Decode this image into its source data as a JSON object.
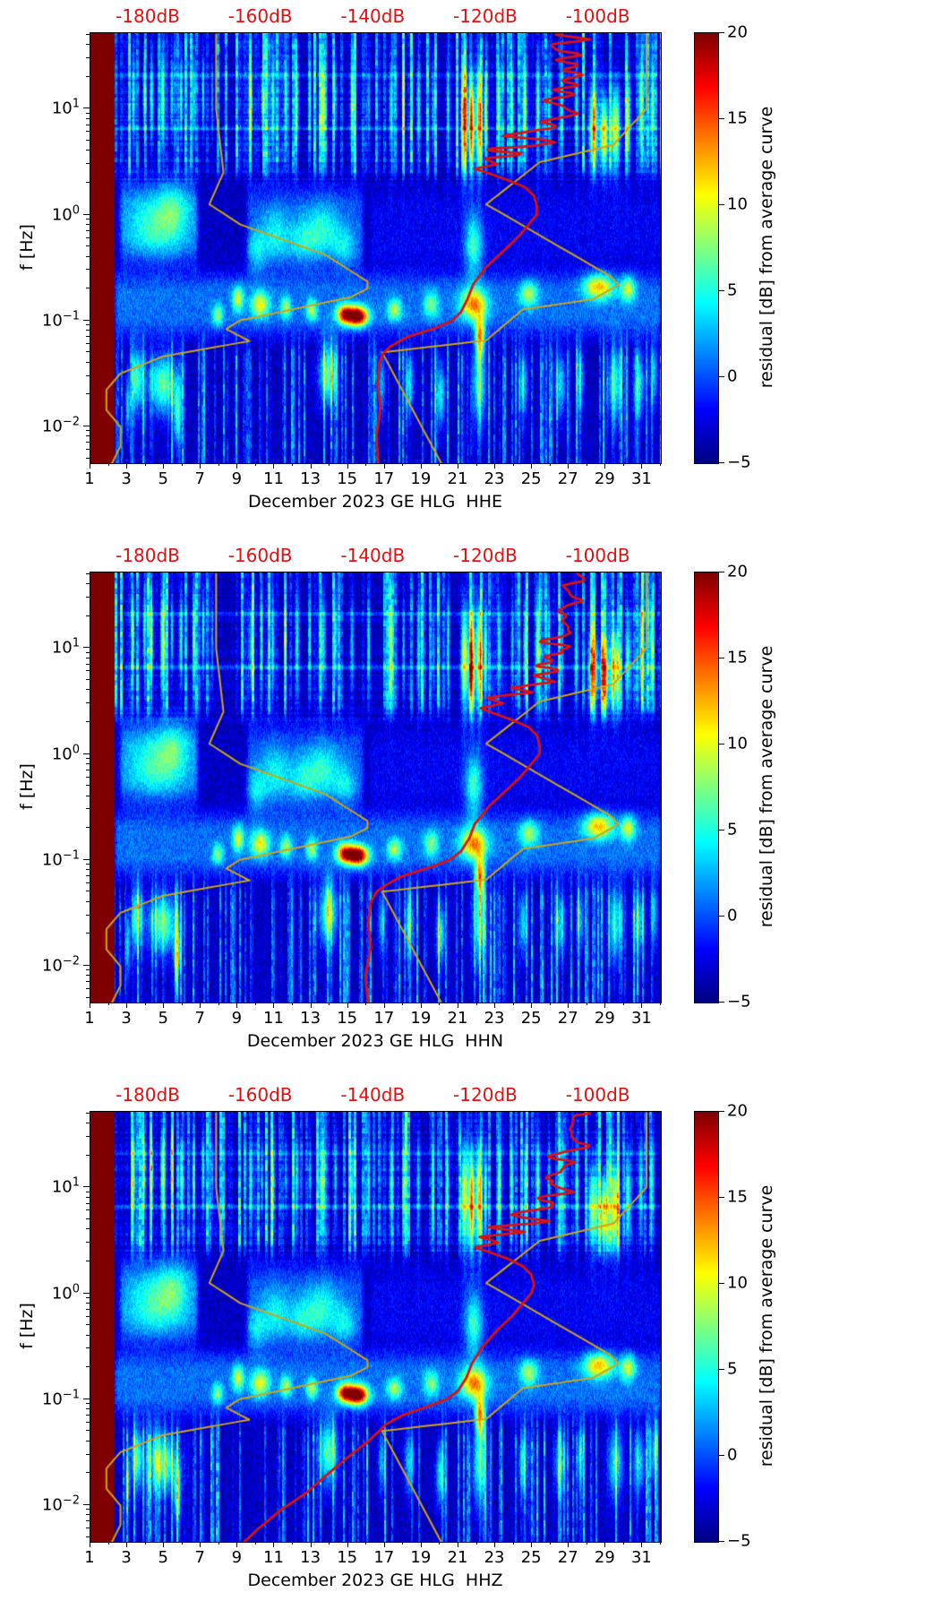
{
  "figure": {
    "station": "GE HLG",
    "month_label": "December 2023",
    "channels": [
      "HHE",
      "HHN",
      "HHZ"
    ]
  },
  "db_axis": {
    "color": "#e01010",
    "ticks": [
      {
        "label": "-180dB",
        "db": -180
      },
      {
        "label": "-160dB",
        "db": -160
      },
      {
        "label": "-140dB",
        "db": -140
      },
      {
        "label": "-120dB",
        "db": -120
      },
      {
        "label": "-100dB",
        "db": -100
      }
    ],
    "db_at_plot_edges": [
      -190.34,
      -88.96
    ]
  },
  "colors": {
    "mean_curve": "#dd1111",
    "noise_model": "#cfa415",
    "axis": "#000000"
  },
  "noise_models": {
    "nlnm_f_db": [
      [
        50,
        -168
      ],
      [
        10,
        -168
      ],
      [
        2.5,
        -166.7
      ],
      [
        1.25,
        -169.2
      ],
      [
        0.806,
        -163.7
      ],
      [
        0.417,
        -148.6
      ],
      [
        0.233,
        -141.1
      ],
      [
        0.2,
        -141.1
      ],
      [
        0.167,
        -144.0
      ],
      [
        0.1,
        -163.8
      ],
      [
        0.083,
        -166.2
      ],
      [
        0.064,
        -162.1
      ],
      [
        0.0457,
        -177.5
      ],
      [
        0.0316,
        -185.0
      ],
      [
        0.0222,
        -187.5
      ],
      [
        0.0143,
        -187.5
      ],
      [
        0.0099,
        -185.0
      ],
      [
        0.0065,
        -185.0
      ],
      [
        0.0045,
        -186.5
      ]
    ],
    "nhnm_f_db": [
      [
        50,
        -91.5
      ],
      [
        10,
        -91.5
      ],
      [
        4.55,
        -97.4
      ],
      [
        3.125,
        -110.5
      ],
      [
        1.25,
        -120.0
      ],
      [
        0.263,
        -98.0
      ],
      [
        0.217,
        -96.5
      ],
      [
        0.159,
        -101.0
      ],
      [
        0.127,
        -113.5
      ],
      [
        0.065,
        -120.0
      ],
      [
        0.05,
        -138.5
      ],
      [
        0.0045,
        -128.0
      ]
    ]
  },
  "chart_data": [
    {
      "type": "heatmap",
      "channel": "HHE",
      "xlabel": "December 2023 GE HLG  HHE",
      "ylabel": "f [Hz]",
      "x_range_days": [
        1,
        32
      ],
      "x_tick_labels": [
        "1",
        "3",
        "5",
        "7",
        "9",
        "11",
        "13",
        "15",
        "17",
        "19",
        "21",
        "23",
        "25",
        "27",
        "29",
        "31"
      ],
      "y_freq_range_hz": [
        0.0045,
        51.6
      ],
      "y_tick_exponents": [
        1,
        0,
        -1,
        -2
      ],
      "saturated_band_days": [
        1,
        2.28
      ],
      "colorbar": {
        "label": "residual [dB] from average curve",
        "min": -5,
        "max": 20,
        "ticks": [
          20,
          15,
          10,
          5,
          0,
          -5
        ],
        "colormap": "jet"
      },
      "mean_psd_curve_f_db": [
        [
          50,
          -104
        ],
        [
          35,
          -106
        ],
        [
          25,
          -104
        ],
        [
          18,
          -108
        ],
        [
          14,
          -105
        ],
        [
          11,
          -110
        ],
        [
          9,
          -107
        ],
        [
          7.5,
          -113
        ],
        [
          6.5,
          -109
        ],
        [
          5.5,
          -115
        ],
        [
          4.8,
          -111
        ],
        [
          4.2,
          -118
        ],
        [
          3.8,
          -114
        ],
        [
          3.4,
          -121
        ],
        [
          3.0,
          -118
        ],
        [
          2.7,
          -122
        ],
        [
          2.4,
          -119
        ],
        [
          2.1,
          -116
        ],
        [
          1.8,
          -113
        ],
        [
          1.5,
          -111.5
        ],
        [
          1.2,
          -111
        ],
        [
          1.0,
          -111
        ],
        [
          0.8,
          -112.5
        ],
        [
          0.6,
          -114.5
        ],
        [
          0.45,
          -117
        ],
        [
          0.32,
          -120
        ],
        [
          0.22,
          -122.3
        ],
        [
          0.16,
          -123.3
        ],
        [
          0.12,
          -124.5
        ],
        [
          0.1,
          -126
        ],
        [
          0.085,
          -129
        ],
        [
          0.07,
          -134
        ],
        [
          0.057,
          -137
        ],
        [
          0.05,
          -138.2
        ],
        [
          0.04,
          -139
        ],
        [
          0.025,
          -139.3
        ],
        [
          0.015,
          -138.8
        ],
        [
          0.008,
          -139.5
        ],
        [
          0.0045,
          -139.2
        ]
      ]
    },
    {
      "type": "heatmap",
      "channel": "HHN",
      "xlabel": "December 2023 GE HLG  HHN",
      "ylabel": "f [Hz]",
      "x_range_days": [
        1,
        32
      ],
      "x_tick_labels": [
        "1",
        "3",
        "5",
        "7",
        "9",
        "11",
        "13",
        "15",
        "17",
        "19",
        "21",
        "23",
        "25",
        "27",
        "29",
        "31"
      ],
      "y_freq_range_hz": [
        0.0045,
        51.6
      ],
      "y_tick_exponents": [
        1,
        0,
        -1,
        -2
      ],
      "saturated_band_days": [
        1,
        2.28
      ],
      "colorbar": {
        "label": "residual [dB] from average curve",
        "min": -5,
        "max": 20,
        "ticks": [
          20,
          15,
          10,
          5,
          0,
          -5
        ],
        "colormap": "jet"
      },
      "mean_psd_curve_f_db": [
        [
          50,
          -103.5
        ],
        [
          35,
          -105
        ],
        [
          25,
          -103.5
        ],
        [
          18,
          -107
        ],
        [
          14,
          -104.5
        ],
        [
          11,
          -109
        ],
        [
          9,
          -106
        ],
        [
          7.5,
          -112
        ],
        [
          6.5,
          -108
        ],
        [
          5.5,
          -114
        ],
        [
          4.8,
          -110
        ],
        [
          4.2,
          -117
        ],
        [
          3.8,
          -113
        ],
        [
          3.4,
          -120
        ],
        [
          3.0,
          -117
        ],
        [
          2.7,
          -121
        ],
        [
          2.4,
          -118.5
        ],
        [
          2.1,
          -115.5
        ],
        [
          1.8,
          -112.5
        ],
        [
          1.5,
          -111
        ],
        [
          1.2,
          -110.5
        ],
        [
          1.0,
          -110.5
        ],
        [
          0.8,
          -112
        ],
        [
          0.6,
          -114
        ],
        [
          0.45,
          -116.5
        ],
        [
          0.32,
          -119.5
        ],
        [
          0.22,
          -122
        ],
        [
          0.16,
          -123
        ],
        [
          0.12,
          -124.5
        ],
        [
          0.1,
          -126.5
        ],
        [
          0.085,
          -130
        ],
        [
          0.07,
          -135
        ],
        [
          0.057,
          -138
        ],
        [
          0.05,
          -139.5
        ],
        [
          0.04,
          -140.5
        ],
        [
          0.025,
          -141
        ],
        [
          0.015,
          -140.5
        ],
        [
          0.008,
          -141.5
        ],
        [
          0.0045,
          -141
        ]
      ]
    },
    {
      "type": "heatmap",
      "channel": "HHZ",
      "xlabel": "December 2023 GE HLG  HHZ",
      "ylabel": "f [Hz]",
      "x_range_days": [
        1,
        32
      ],
      "x_tick_labels": [
        "1",
        "3",
        "5",
        "7",
        "9",
        "11",
        "13",
        "15",
        "17",
        "19",
        "21",
        "23",
        "25",
        "27",
        "29",
        "31"
      ],
      "y_freq_range_hz": [
        0.0045,
        51.6
      ],
      "y_tick_exponents": [
        1,
        0,
        -1,
        -2
      ],
      "saturated_band_days": [
        1,
        2.28
      ],
      "colorbar": {
        "label": "residual [dB] from average curve",
        "min": -5,
        "max": 20,
        "ticks": [
          20,
          15,
          10,
          5,
          0,
          -5
        ],
        "colormap": "jet"
      },
      "mean_psd_curve_f_db": [
        [
          50,
          -103
        ],
        [
          35,
          -105
        ],
        [
          25,
          -103.5
        ],
        [
          18,
          -107.5
        ],
        [
          14,
          -105
        ],
        [
          11,
          -110
        ],
        [
          9,
          -107
        ],
        [
          7.5,
          -113
        ],
        [
          6.5,
          -109
        ],
        [
          5.5,
          -115
        ],
        [
          4.8,
          -111
        ],
        [
          4.2,
          -118
        ],
        [
          3.8,
          -114
        ],
        [
          3.4,
          -121
        ],
        [
          3.0,
          -118
        ],
        [
          2.7,
          -122
        ],
        [
          2.4,
          -119
        ],
        [
          2.1,
          -116
        ],
        [
          1.8,
          -113.5
        ],
        [
          1.5,
          -112
        ],
        [
          1.2,
          -111.5
        ],
        [
          1.0,
          -112
        ],
        [
          0.8,
          -113.5
        ],
        [
          0.6,
          -115.5
        ],
        [
          0.45,
          -118
        ],
        [
          0.32,
          -120.5
        ],
        [
          0.22,
          -122.5
        ],
        [
          0.16,
          -123.5
        ],
        [
          0.12,
          -125
        ],
        [
          0.1,
          -127
        ],
        [
          0.085,
          -130.5
        ],
        [
          0.07,
          -135
        ],
        [
          0.057,
          -138
        ],
        [
          0.05,
          -139
        ],
        [
          0.04,
          -141
        ],
        [
          0.03,
          -144
        ],
        [
          0.02,
          -148
        ],
        [
          0.013,
          -152
        ],
        [
          0.009,
          -156.5
        ],
        [
          0.006,
          -160.5
        ],
        [
          0.0045,
          -163
        ]
      ]
    }
  ],
  "spectrogram_features": {
    "blobs_day_dw_logf_lfw_amp": [
      [
        3.3,
        0.1,
        1.1,
        0.45,
        8
      ],
      [
        3.9,
        0.08,
        1.15,
        0.4,
        7
      ],
      [
        4.3,
        0.1,
        1.1,
        0.45,
        9
      ],
      [
        4.9,
        0.12,
        1.1,
        0.5,
        10
      ],
      [
        5.4,
        0.08,
        1.15,
        0.4,
        8
      ],
      [
        5.9,
        0.1,
        1.1,
        0.45,
        9
      ],
      [
        6.6,
        0.08,
        1.1,
        0.4,
        7
      ],
      [
        7.1,
        0.08,
        1.15,
        0.4,
        8
      ],
      [
        7.6,
        0.06,
        1.1,
        0.4,
        6
      ],
      [
        9.7,
        0.12,
        1.05,
        0.5,
        7
      ],
      [
        10.3,
        0.08,
        1.1,
        0.4,
        6
      ],
      [
        10.9,
        0.1,
        1.05,
        0.5,
        7
      ],
      [
        11.6,
        0.08,
        1.1,
        0.4,
        6
      ],
      [
        12.2,
        0.1,
        1.05,
        0.5,
        7
      ],
      [
        12.9,
        0.08,
        1.1,
        0.4,
        6
      ],
      [
        13.6,
        0.15,
        1.05,
        0.5,
        8
      ],
      [
        14.3,
        0.08,
        1.1,
        0.4,
        6
      ],
      [
        15.2,
        0.1,
        1.05,
        0.5,
        7
      ],
      [
        16.1,
        0.08,
        1.05,
        0.45,
        6
      ],
      [
        17.3,
        0.1,
        1.0,
        0.55,
        7
      ],
      [
        18.0,
        0.08,
        1.0,
        0.5,
        6
      ],
      [
        18.8,
        0.1,
        1.0,
        0.55,
        7
      ],
      [
        19.6,
        0.08,
        1.0,
        0.5,
        6
      ],
      [
        20.4,
        0.08,
        1.0,
        0.5,
        7
      ],
      [
        21.3,
        0.18,
        0.9,
        0.5,
        14
      ],
      [
        21.7,
        0.15,
        0.85,
        0.45,
        18
      ],
      [
        22.1,
        0.15,
        0.9,
        0.5,
        16
      ],
      [
        22.45,
        0.1,
        0.95,
        0.45,
        10
      ],
      [
        23.2,
        0.1,
        1.0,
        0.5,
        8
      ],
      [
        23.9,
        0.08,
        1.0,
        0.5,
        7
      ],
      [
        24.6,
        0.1,
        1.0,
        0.5,
        8
      ],
      [
        25.3,
        0.12,
        1.0,
        0.55,
        10
      ],
      [
        25.9,
        0.08,
        1.0,
        0.5,
        7
      ],
      [
        26.6,
        0.1,
        1.0,
        0.5,
        7
      ],
      [
        27.4,
        0.1,
        0.95,
        0.5,
        8
      ],
      [
        28.3,
        0.25,
        0.8,
        0.4,
        12
      ],
      [
        28.9,
        0.2,
        0.75,
        0.35,
        15
      ],
      [
        29.5,
        0.25,
        0.8,
        0.4,
        13
      ],
      [
        30.2,
        0.15,
        0.9,
        0.45,
        9
      ],
      [
        30.9,
        0.12,
        1.0,
        0.5,
        8
      ],
      [
        31.5,
        0.12,
        1.0,
        0.5,
        6
      ],
      [
        7.9,
        0.3,
        -0.95,
        0.1,
        7
      ],
      [
        9.0,
        0.3,
        -0.8,
        0.12,
        9
      ],
      [
        10.2,
        0.5,
        -0.85,
        0.12,
        10
      ],
      [
        11.6,
        0.3,
        -0.88,
        0.1,
        8
      ],
      [
        13.0,
        0.3,
        -0.9,
        0.1,
        8
      ],
      [
        14.8,
        0.45,
        -0.94,
        0.09,
        16
      ],
      [
        15.5,
        0.55,
        -0.96,
        0.09,
        22
      ],
      [
        17.5,
        0.4,
        -0.9,
        0.1,
        8
      ],
      [
        19.5,
        0.4,
        -0.85,
        0.12,
        7
      ],
      [
        21.8,
        0.7,
        -0.85,
        0.14,
        13
      ],
      [
        24.8,
        0.5,
        -0.75,
        0.12,
        8
      ],
      [
        28.6,
        0.8,
        -0.68,
        0.12,
        12
      ],
      [
        30.2,
        0.4,
        -0.7,
        0.12,
        9
      ],
      [
        4.5,
        1.4,
        -0.1,
        0.28,
        5
      ],
      [
        5.5,
        0.8,
        0.05,
        0.25,
        4
      ],
      [
        10.0,
        0.5,
        -0.35,
        0.2,
        4
      ],
      [
        11.0,
        0.8,
        -0.2,
        0.25,
        4.5
      ],
      [
        12.5,
        0.8,
        -0.25,
        0.22,
        4
      ],
      [
        13.6,
        0.9,
        -0.15,
        0.25,
        5
      ],
      [
        14.8,
        0.6,
        -0.3,
        0.2,
        4
      ],
      [
        21.8,
        0.5,
        -0.3,
        0.3,
        8
      ],
      [
        3.0,
        0.12,
        -1.8,
        0.3,
        7
      ],
      [
        3.5,
        0.3,
        -1.55,
        0.3,
        9
      ],
      [
        4.9,
        0.8,
        -1.6,
        0.28,
        10
      ],
      [
        5.7,
        0.2,
        -1.9,
        0.3,
        8
      ],
      [
        13.9,
        0.5,
        -1.5,
        0.3,
        10
      ],
      [
        16.8,
        0.2,
        -1.6,
        0.3,
        6
      ],
      [
        18.3,
        0.25,
        -1.6,
        0.3,
        7
      ],
      [
        20.0,
        0.25,
        -1.7,
        0.3,
        8
      ],
      [
        22.1,
        0.35,
        -1.6,
        0.4,
        9
      ],
      [
        22.15,
        0.25,
        -1.15,
        0.18,
        13
      ],
      [
        24.5,
        0.25,
        -1.6,
        0.3,
        7
      ],
      [
        26.5,
        0.3,
        -1.6,
        0.3,
        7
      ],
      [
        27.6,
        0.2,
        -1.55,
        0.3,
        6
      ],
      [
        29.5,
        0.4,
        -1.6,
        0.35,
        8
      ],
      [
        30.8,
        0.3,
        -1.6,
        0.3,
        7
      ],
      [
        31.6,
        0.2,
        -1.5,
        0.3,
        6
      ]
    ],
    "stripes_d0_d1_lf0_lf1_amp": [
      [
        2.3,
        32,
        -1.12,
        -0.58,
        4.2
      ],
      [
        2.6,
        6.8,
        -0.45,
        0.3,
        4.5
      ],
      [
        9.5,
        15.8,
        -0.5,
        0.25,
        3.5
      ],
      [
        2.3,
        32,
        0.795,
        0.835,
        3.2
      ],
      [
        2.3,
        32,
        1.3,
        1.34,
        2.2
      ],
      [
        16.2,
        32,
        -0.5,
        0.2,
        1.3
      ]
    ]
  }
}
